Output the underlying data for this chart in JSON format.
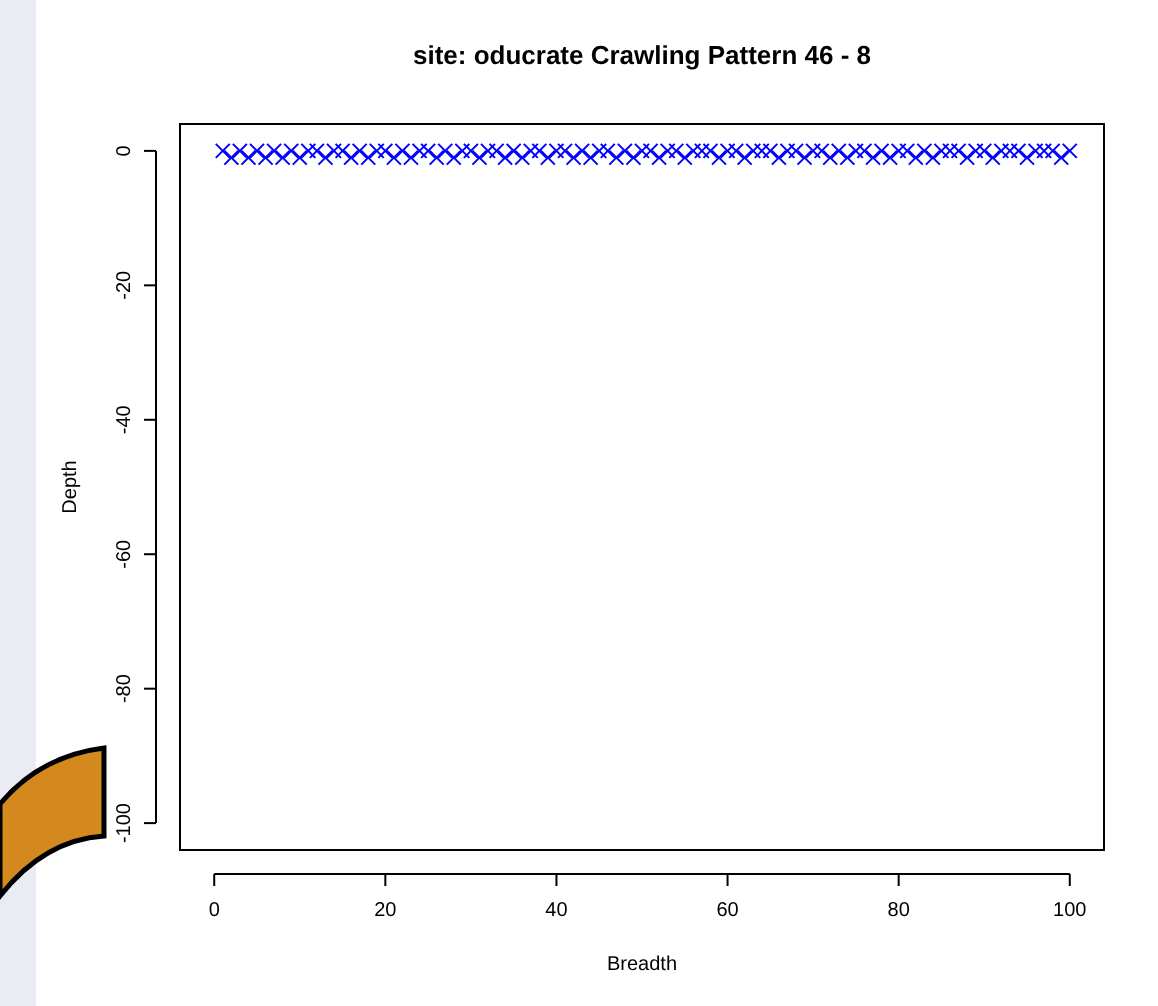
{
  "chart_data": {
    "type": "scatter",
    "title": "site: oducrate Crawling Pattern 46 - 8",
    "xlabel": "Breadth",
    "ylabel": "Depth",
    "x": [
      1,
      2,
      3,
      4,
      5,
      6,
      7,
      8,
      9,
      10,
      11,
      12,
      13,
      14,
      15,
      16,
      17,
      18,
      19,
      20,
      21,
      22,
      23,
      24,
      25,
      26,
      27,
      28,
      29,
      30,
      31,
      32,
      33,
      34,
      35,
      36,
      37,
      38,
      39,
      40,
      41,
      42,
      43,
      44,
      45,
      46,
      47,
      48,
      49,
      50,
      51,
      52,
      53,
      54,
      55,
      56,
      57,
      58,
      59,
      60,
      61,
      62,
      63,
      64,
      65,
      66,
      67,
      68,
      69,
      70,
      71,
      72,
      73,
      74,
      75,
      76,
      77,
      78,
      79,
      80,
      81,
      82,
      83,
      84,
      85,
      86,
      87,
      88,
      89,
      90,
      91,
      92,
      93,
      94,
      95,
      96,
      97,
      98,
      99,
      100
    ],
    "series": [
      {
        "color": "#0000ff",
        "values": [
          0,
          -1,
          0,
          -1,
          0,
          -1,
          0,
          -1,
          0,
          -1,
          0,
          0,
          -1,
          0,
          0,
          -1,
          0,
          -1,
          0,
          0,
          -1,
          0,
          -1,
          0,
          0,
          -1,
          0,
          -1,
          0,
          0,
          -1,
          0,
          0,
          -1,
          0,
          -1,
          0,
          0,
          -1,
          0,
          0,
          -1,
          0,
          -1,
          0,
          0,
          -1,
          0,
          -1,
          0,
          0,
          -1,
          0,
          0,
          -1,
          0,
          0,
          0,
          -1,
          0,
          0,
          -1,
          0,
          0,
          0,
          -1,
          0,
          0,
          -1,
          0,
          0,
          -1,
          0,
          -1,
          0,
          0,
          -1,
          0,
          -1,
          0,
          0,
          -1,
          0,
          -1,
          0,
          0,
          0,
          -1,
          0,
          0,
          -1,
          0,
          0,
          0,
          -1,
          0,
          0,
          0,
          -1,
          0
        ]
      }
    ],
    "xlim": [
      -4,
      104
    ],
    "ylim": [
      -104,
      4
    ],
    "xticks": [
      0,
      20,
      40,
      60,
      80,
      100
    ],
    "yticks": [
      0,
      -20,
      -40,
      -60,
      -80,
      -100
    ],
    "grid": false,
    "marker": "cross"
  }
}
